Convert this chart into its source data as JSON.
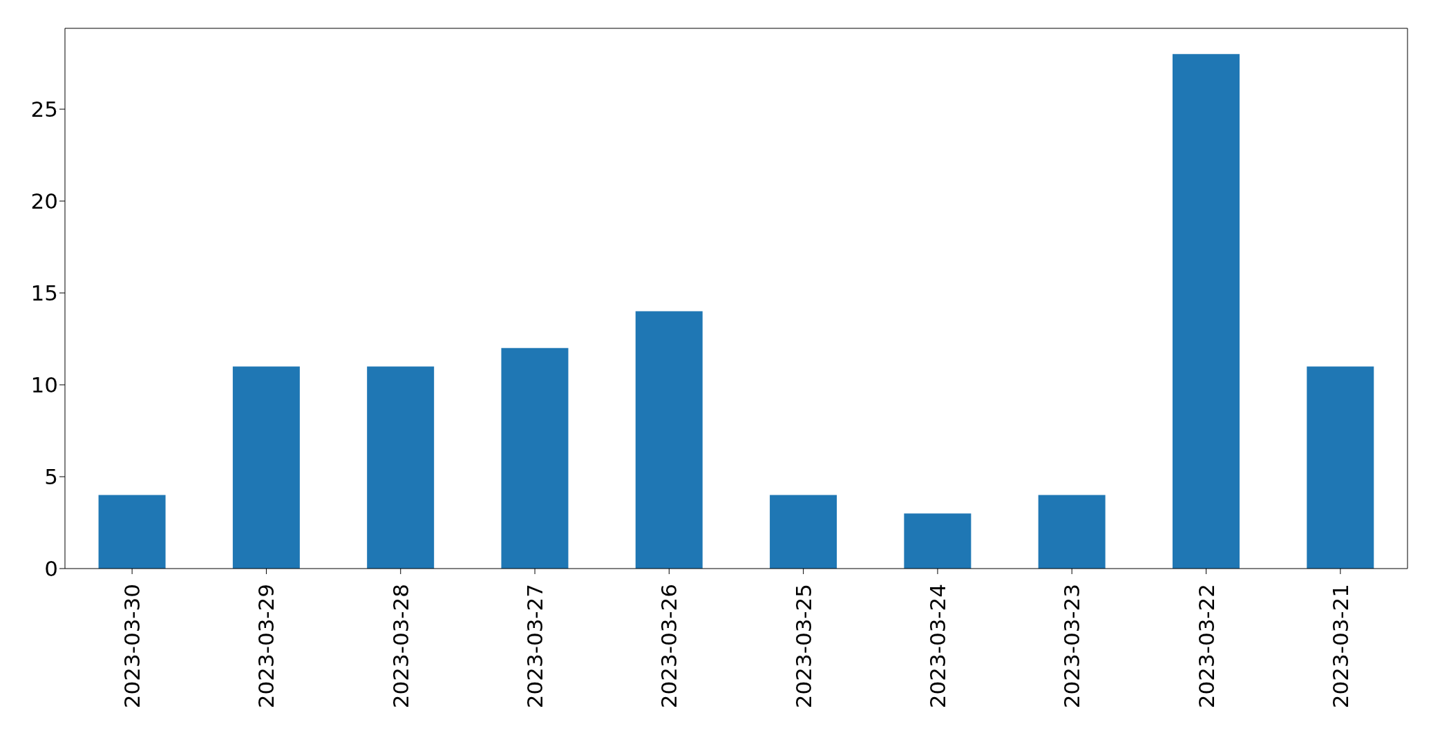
{
  "chart_data": {
    "type": "bar",
    "categories": [
      "2023-03-30",
      "2023-03-29",
      "2023-03-28",
      "2023-03-27",
      "2023-03-26",
      "2023-03-25",
      "2023-03-24",
      "2023-03-23",
      "2023-03-22",
      "2023-03-21"
    ],
    "values": [
      4,
      11,
      11,
      12,
      14,
      4,
      3,
      4,
      28,
      11
    ],
    "color": "#1f77b4",
    "ylim": [
      0,
      29.4
    ],
    "yticks": [
      0,
      5,
      10,
      15,
      20,
      25
    ]
  }
}
